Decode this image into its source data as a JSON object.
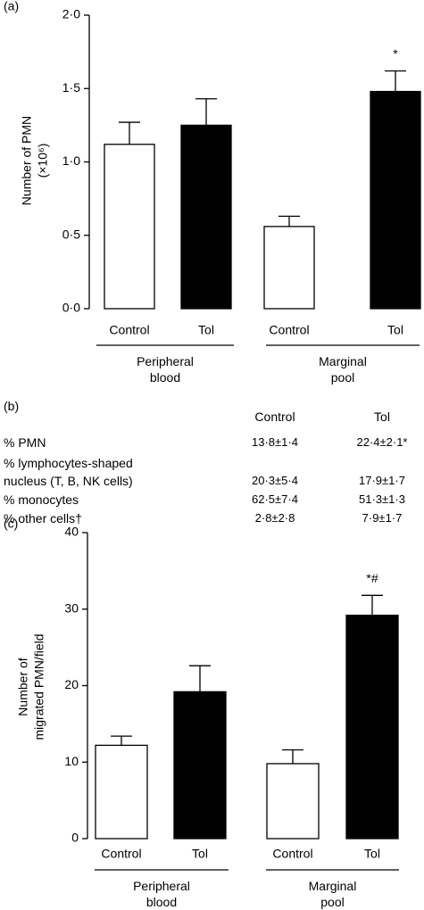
{
  "chart_data": [
    {
      "type": "bar",
      "panel": "(a)",
      "ylabel": "Number of PMN (×10⁶)",
      "categories": [
        "Peripheral blood",
        "Marginal pool"
      ],
      "series": [
        {
          "name": "Control",
          "color": "#ffffff",
          "values": [
            1.12,
            0.56
          ],
          "errors": [
            0.15,
            0.07
          ]
        },
        {
          "name": "Tol",
          "color": "#000000",
          "values": [
            1.25,
            1.48
          ],
          "errors": [
            0.18,
            0.14
          ]
        }
      ],
      "annotations": [
        {
          "text": "*",
          "series": 1,
          "category": 1
        }
      ],
      "ylim": [
        0,
        2
      ],
      "yticks": [
        {
          "value": 0,
          "label": "0·0"
        },
        {
          "value": 0.5,
          "label": "0·5"
        },
        {
          "value": 1,
          "label": "1·0"
        },
        {
          "value": 1.5,
          "label": "1·5"
        },
        {
          "value": 2,
          "label": "2·0"
        }
      ]
    },
    {
      "type": "bar",
      "panel": "(c)",
      "ylabel": "Number of migrated PMN/field",
      "categories": [
        "Peripheral blood",
        "Marginal pool"
      ],
      "series": [
        {
          "name": "Control",
          "color": "#ffffff",
          "values": [
            12.2,
            9.8
          ],
          "errors": [
            1.2,
            1.8
          ]
        },
        {
          "name": "Tol",
          "color": "#000000",
          "values": [
            19.2,
            29.2
          ],
          "errors": [
            3.4,
            2.6
          ]
        }
      ],
      "annotations": [
        {
          "text": "*#",
          "series": 1,
          "category": 1
        }
      ],
      "ylim": [
        0,
        40
      ],
      "yticks": [
        0,
        10,
        20,
        30,
        40
      ]
    }
  ],
  "table": {
    "panel": "(b)",
    "columns": [
      "Control",
      "Tol"
    ],
    "rows": [
      {
        "label": "% PMN",
        "values": [
          "13·8±1·4",
          "22·4±2·1*"
        ]
      },
      {
        "label": "% lymphocytes-shaped nucleus (T, B, NK cells)",
        "values": [
          "20·3±5·4",
          "17·9±1·7"
        ]
      },
      {
        "label": "% monocytes",
        "values": [
          "62·5±7·4",
          "51·3±1·3"
        ]
      },
      {
        "label": "% other cells†",
        "values": [
          "2·8±2·8",
          "7·9±1·7"
        ]
      }
    ]
  }
}
